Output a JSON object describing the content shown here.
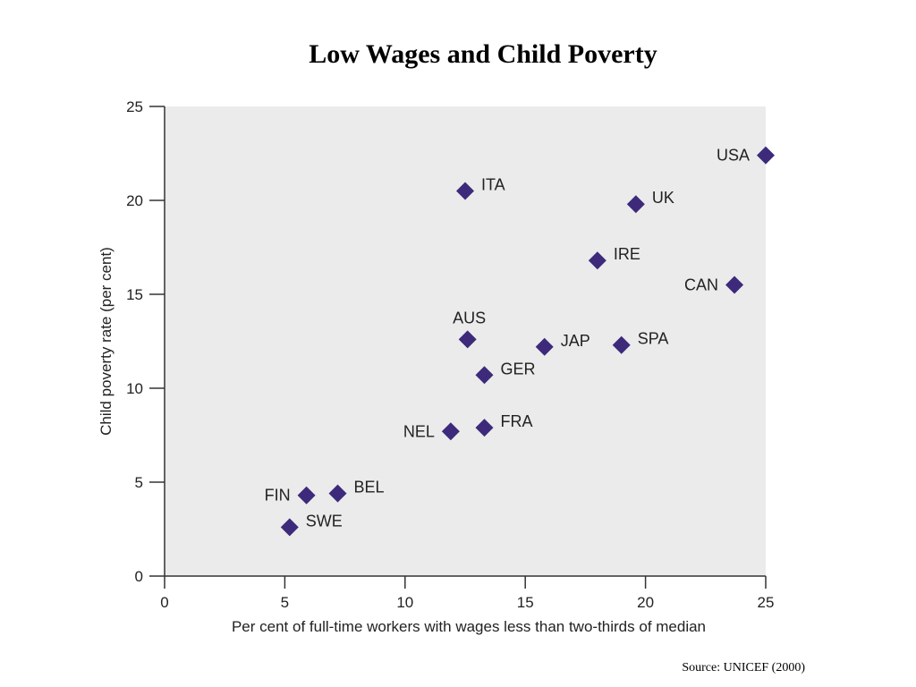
{
  "title": "Low Wages and Child Poverty",
  "source": "Source: UNICEF (2000)",
  "chart_data": {
    "type": "scatter",
    "title": "Low Wages and Child Poverty",
    "xlabel": "Per cent of full-time workers with wages less than two-thirds of median",
    "ylabel": "Child poverty rate (per cent)",
    "xlim": [
      0,
      25
    ],
    "ylim": [
      0,
      25
    ],
    "xticks": [
      0,
      5,
      10,
      15,
      20,
      25
    ],
    "yticks": [
      0,
      5,
      10,
      15,
      20,
      25
    ],
    "grid": false,
    "marker": "diamond",
    "colors": {
      "marker": "#3d2a7a",
      "plot_bg": "#ebebeb",
      "axis": "#333333"
    },
    "points": [
      {
        "label": "USA",
        "x": 25.0,
        "y": 22.4,
        "label_pos": "left"
      },
      {
        "label": "ITA",
        "x": 12.5,
        "y": 20.5,
        "label_pos": "right"
      },
      {
        "label": "UK",
        "x": 19.6,
        "y": 19.8,
        "label_pos": "right"
      },
      {
        "label": "IRE",
        "x": 18.0,
        "y": 16.8,
        "label_pos": "right"
      },
      {
        "label": "CAN",
        "x": 23.7,
        "y": 15.5,
        "label_pos": "left"
      },
      {
        "label": "AUS",
        "x": 12.6,
        "y": 12.6,
        "label_pos": "above"
      },
      {
        "label": "JAP",
        "x": 15.8,
        "y": 12.2,
        "label_pos": "right"
      },
      {
        "label": "SPA",
        "x": 19.0,
        "y": 12.3,
        "label_pos": "right"
      },
      {
        "label": "GER",
        "x": 13.3,
        "y": 10.7,
        "label_pos": "right"
      },
      {
        "label": "NEL",
        "x": 11.9,
        "y": 7.7,
        "label_pos": "left"
      },
      {
        "label": "FRA",
        "x": 13.3,
        "y": 7.9,
        "label_pos": "right"
      },
      {
        "label": "FIN",
        "x": 5.9,
        "y": 4.3,
        "label_pos": "left"
      },
      {
        "label": "BEL",
        "x": 7.2,
        "y": 4.4,
        "label_pos": "right"
      },
      {
        "label": "SWE",
        "x": 5.2,
        "y": 2.6,
        "label_pos": "right"
      }
    ]
  }
}
